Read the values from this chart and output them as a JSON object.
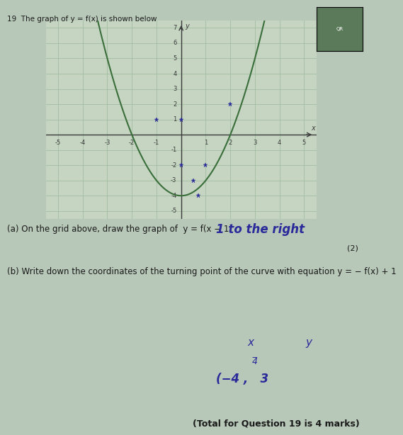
{
  "page_bg": "#b8c8b8",
  "paper_bg": "#c8d8c5",
  "graph_bg": "#c5d5c2",
  "grid_color": "#9ab89a",
  "curve_color": "#3a6e3a",
  "axis_color": "#3a3a3a",
  "hw_color": "#2a2a9a",
  "text_color": "#1a1a1a",
  "tick_color": "#3a3a3a",
  "xlim": [
    -5.5,
    5.5
  ],
  "ylim": [
    -5.5,
    7.5
  ],
  "xticks": [
    -5,
    -4,
    -3,
    -2,
    -1,
    0,
    1,
    2,
    3,
    4,
    5
  ],
  "yticks": [
    -5,
    -4,
    -3,
    -2,
    -1,
    0,
    1,
    2,
    3,
    4,
    5,
    6,
    7
  ],
  "curve_vertex_x": 0.0,
  "curve_vertex_y": -4.0,
  "curve_a": 1.0,
  "title_text": "19  The graph of y = f(x) is shown below",
  "question_a": "(a) On the grid above, draw the graph of  y = f(x − 1)",
  "hw_a_note": "1 to the right",
  "mark_a": "(2)",
  "question_b": "(b) Write down the coordinates of the turning point of the curve with equation y = − f(x) + 1",
  "answer_x_label": "x",
  "answer_y_label": "y",
  "answer_frac": "¾",
  "answer_coords": "(−4 ,   3",
  "total_marks": "(Total for Question 19 is 4 marks)",
  "marked_points": [
    [
      -1,
      1
    ],
    [
      0,
      1
    ],
    [
      2,
      2
    ],
    [
      0,
      -2
    ],
    [
      1,
      -2
    ],
    [
      0.5,
      -3
    ],
    [
      0.7,
      -4
    ]
  ]
}
